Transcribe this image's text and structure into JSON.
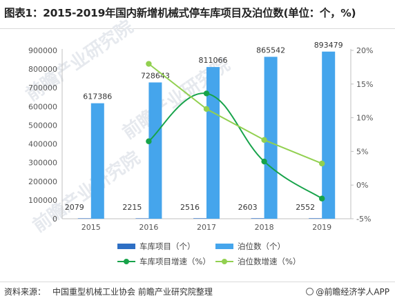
{
  "title": "图表1：2015-2019年国内新增机械式停车库项目及泊位数(单位：个，%)",
  "watermarks": [
    "前瞻产业研究院",
    "前瞻产业研究院",
    "前瞻产业研究院"
  ],
  "footer": {
    "source_label": "资料来源：",
    "source_text": "中国重型机械工业协会 前瞻产业研究院整理",
    "credit": "@前瞻经济学人APP"
  },
  "chart_data": {
    "type": "bar",
    "categories": [
      "2015",
      "2016",
      "2017",
      "2018",
      "2019"
    ],
    "y_left": {
      "min": 0,
      "max": 900000,
      "step": 100000,
      "ticks": [
        "0",
        "100000",
        "200000",
        "300000",
        "400000",
        "500000",
        "600000",
        "700000",
        "800000",
        "900000"
      ]
    },
    "y_right": {
      "min": -5,
      "max": 20,
      "step": 5,
      "ticks": [
        "-5%",
        "0%",
        "5%",
        "10%",
        "15%",
        "20%"
      ]
    },
    "series": [
      {
        "name": "车库项目（个）",
        "type": "bar",
        "axis": "left",
        "color": "#2e6fc4",
        "values": [
          2079,
          2215,
          2516,
          2603,
          2552
        ],
        "labels": [
          "2079",
          "2215",
          "2516",
          "2603",
          "2552"
        ]
      },
      {
        "name": "泊位数（个）",
        "type": "bar",
        "axis": "left",
        "color": "#45a5ec",
        "values": [
          617386,
          728643,
          811066,
          865542,
          893479
        ],
        "labels": [
          "617386",
          "728643",
          "811066",
          "865542",
          "893479"
        ]
      },
      {
        "name": "车库项目增速（%）",
        "type": "line",
        "smooth": true,
        "axis": "right",
        "color": "#17a34a",
        "values": [
          null,
          6.5,
          13.6,
          3.5,
          -2.0
        ]
      },
      {
        "name": "泊位数增速（%）",
        "type": "line",
        "smooth": false,
        "axis": "right",
        "color": "#92d050",
        "values": [
          null,
          18.0,
          11.3,
          6.7,
          3.2
        ]
      }
    ],
    "legend": "bottom",
    "grid": false
  }
}
